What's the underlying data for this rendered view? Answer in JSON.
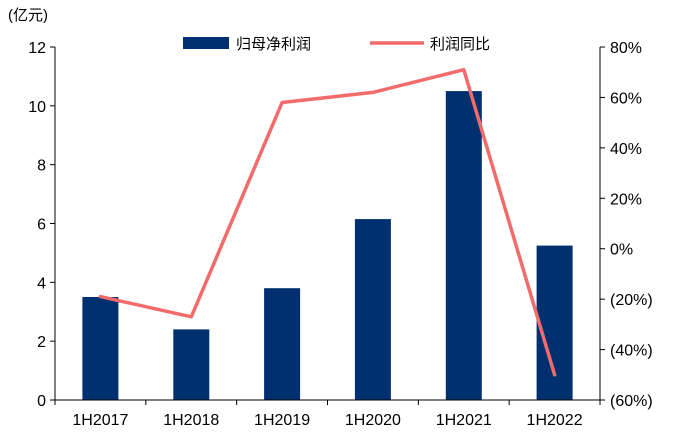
{
  "chart_data": {
    "type": "bar",
    "categories": [
      "1H2017",
      "1H2018",
      "1H2019",
      "1H2020",
      "1H2021",
      "1H2022"
    ],
    "series": [
      {
        "name": "归母净利润",
        "type": "bar",
        "axis": "left",
        "color": "#003070",
        "values": [
          3.5,
          2.4,
          3.8,
          6.15,
          10.5,
          5.25
        ]
      },
      {
        "name": "利润同比",
        "type": "line",
        "axis": "right",
        "color": "#f26b6b",
        "values": [
          -19,
          -27,
          58,
          62,
          71,
          -50
        ]
      }
    ],
    "y_left": {
      "unit_label": "(亿元)",
      "ylim": [
        0,
        12
      ],
      "ticks": [
        0,
        2,
        4,
        6,
        8,
        10,
        12
      ],
      "tick_labels": [
        "0",
        "2",
        "4",
        "6",
        "8",
        "10",
        "12"
      ]
    },
    "y_right": {
      "ylim": [
        -60,
        80
      ],
      "ticks": [
        -60,
        -40,
        -20,
        0,
        20,
        40,
        60,
        80
      ],
      "tick_labels": [
        "(60%)",
        "(40%)",
        "(20%)",
        "0%",
        "20%",
        "40%",
        "60%",
        "80%"
      ]
    },
    "grid": false,
    "legend_position": "top-center"
  }
}
